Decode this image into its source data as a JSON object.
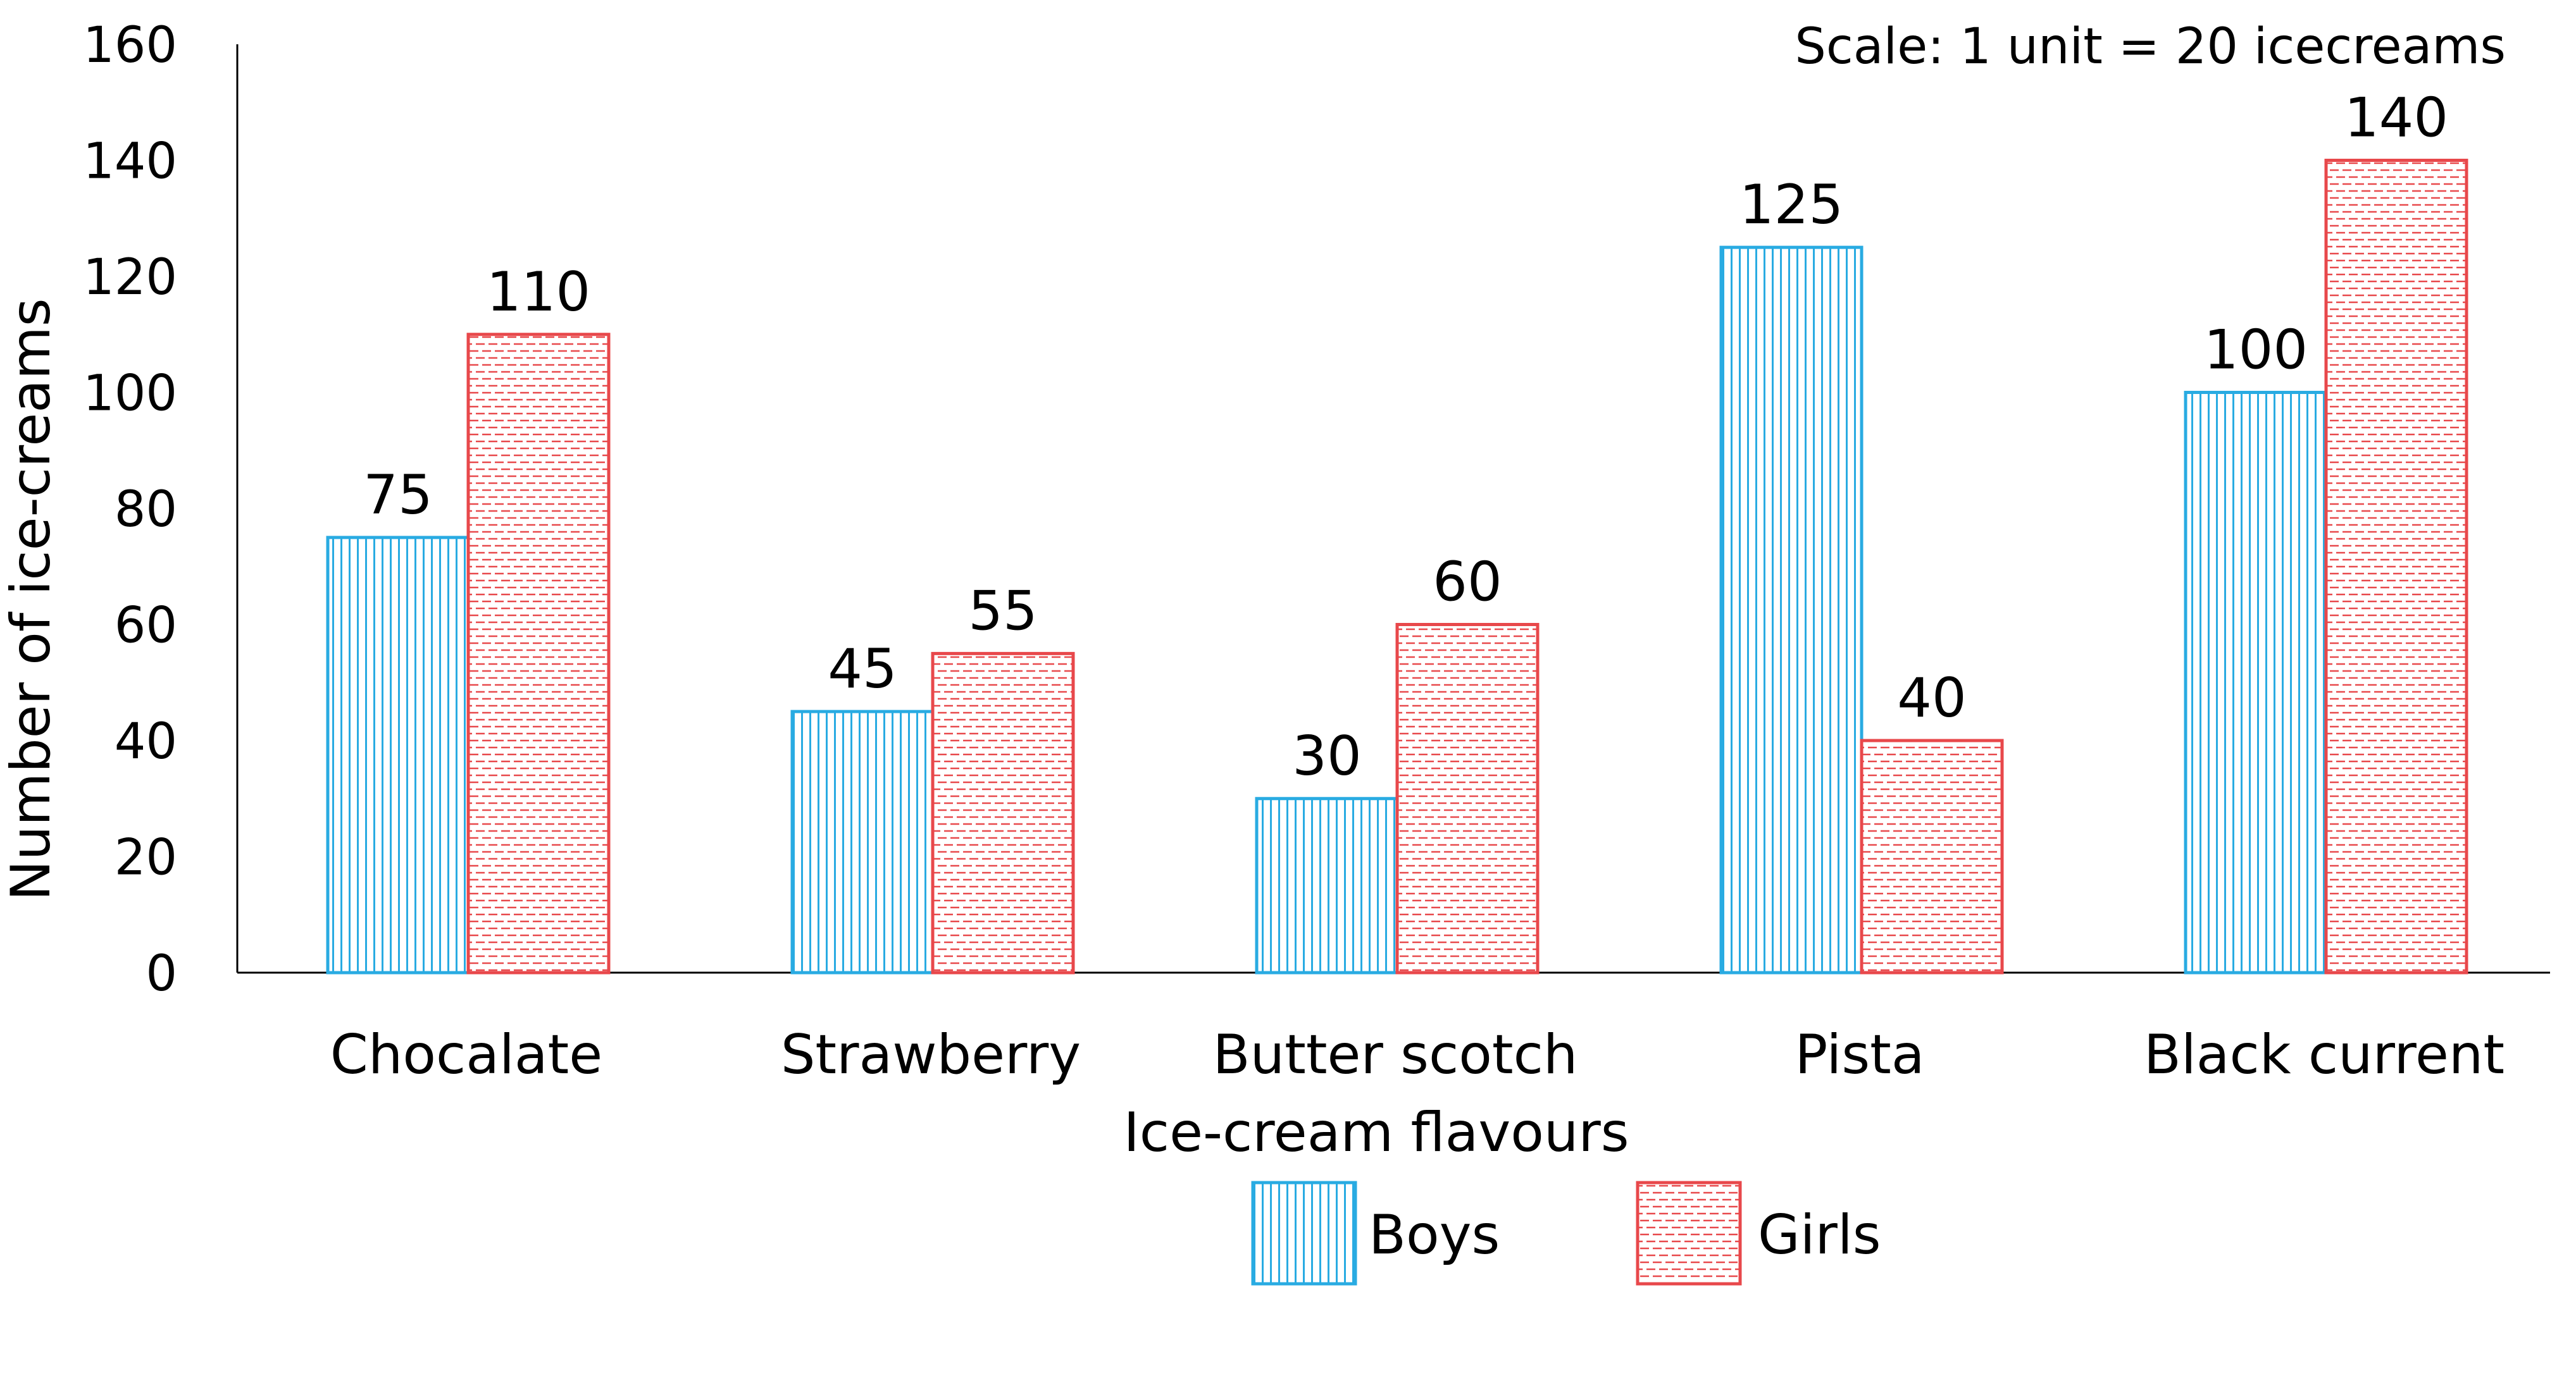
{
  "chart_data": {
    "type": "bar",
    "categories": [
      "Chocalate",
      "Strawberry",
      "Butter scotch",
      "Pista",
      "Black current"
    ],
    "series": [
      {
        "name": "Boys",
        "values": [
          75,
          45,
          30,
          125,
          100
        ],
        "color": "#29abe2",
        "pattern": "vertical-lines"
      },
      {
        "name": "Girls",
        "values": [
          110,
          55,
          60,
          40,
          140
        ],
        "color": "#e8484b",
        "pattern": "horizontal-dashes"
      }
    ],
    "xlabel": "Ice-cream flavours",
    "ylabel": "Number of ice-creams",
    "ylim": [
      0,
      160
    ],
    "yticks": [
      0,
      20,
      40,
      60,
      80,
      100,
      120,
      140,
      160
    ],
    "annotation": "Scale: 1 unit = 20 icecreams",
    "legend_position": "bottom-center",
    "grid": false
  }
}
